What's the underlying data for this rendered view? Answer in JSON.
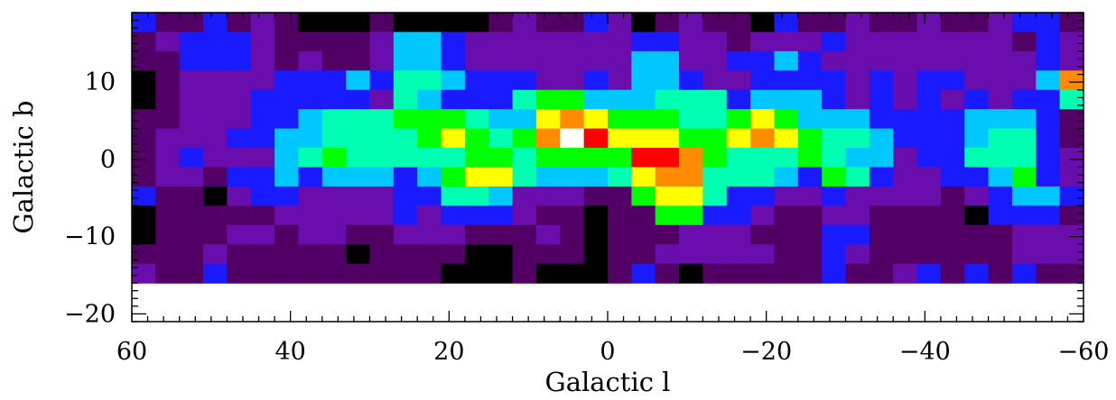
{
  "chart_data": {
    "type": "heatmap",
    "title": "",
    "xlabel": "Galactic l",
    "ylabel": "Galactic b",
    "xlim": [
      60,
      -60
    ],
    "ylim": [
      -21,
      19
    ],
    "x_ticks": [
      60,
      40,
      20,
      0,
      -20,
      -40,
      -60
    ],
    "x_tick_labels": [
      "60",
      "40",
      "20",
      "0",
      "−20",
      "−40",
      "−60"
    ],
    "y_ticks": [
      -20,
      -10,
      0,
      10
    ],
    "y_tick_labels": [
      "−20",
      "−10",
      "0",
      "10"
    ],
    "grid": false,
    "colormap": "rainbow",
    "color_scale": [
      "#000000",
      "#520066",
      "#6a0dad",
      "#1a1aff",
      "#00c8ff",
      "#00ffb0",
      "#00ff00",
      "#ffff00",
      "#ff8c00",
      "#ff0000",
      "#ffffff"
    ],
    "l_start": 60,
    "l_step": -3,
    "b_start": 19,
    "b_step": -2.5,
    "values": [
      [
        3,
        1,
        1,
        3,
        1,
        2,
        1,
        0,
        0,
        0,
        1,
        0,
        0,
        0,
        0,
        1,
        2,
        1,
        1,
        3,
        2,
        0,
        1,
        2,
        1,
        1,
        0,
        3,
        1,
        1,
        2,
        1,
        1,
        2,
        1,
        1,
        2,
        3,
        3,
        1
      ],
      [
        1,
        2,
        3,
        3,
        3,
        2,
        1,
        1,
        1,
        1,
        2,
        4,
        4,
        3,
        2,
        2,
        2,
        2,
        2,
        2,
        2,
        3,
        3,
        2,
        2,
        1,
        2,
        2,
        2,
        3,
        2,
        2,
        2,
        2,
        2,
        2,
        2,
        1,
        3,
        2
      ],
      [
        1,
        1,
        3,
        3,
        3,
        2,
        1,
        2,
        1,
        1,
        2,
        4,
        4,
        3,
        2,
        2,
        2,
        2,
        2,
        2,
        2,
        4,
        4,
        2,
        2,
        3,
        3,
        4,
        3,
        2,
        2,
        2,
        2,
        2,
        2,
        2,
        2,
        2,
        3,
        2
      ],
      [
        0,
        1,
        2,
        2,
        2,
        2,
        3,
        3,
        3,
        4,
        3,
        5,
        5,
        4,
        3,
        3,
        3,
        2,
        2,
        3,
        2,
        4,
        4,
        3,
        2,
        2,
        3,
        3,
        3,
        3,
        2,
        3,
        2,
        3,
        3,
        2,
        2,
        2,
        4,
        8
      ],
      [
        0,
        1,
        2,
        2,
        2,
        3,
        3,
        3,
        3,
        3,
        2,
        5,
        4,
        3,
        3,
        3,
        5,
        6,
        6,
        4,
        4,
        4,
        5,
        5,
        5,
        3,
        4,
        4,
        4,
        3,
        2,
        3,
        2,
        3,
        2,
        3,
        2,
        3,
        3,
        5
      ],
      [
        1,
        1,
        2,
        2,
        2,
        3,
        3,
        4,
        5,
        5,
        5,
        6,
        6,
        6,
        5,
        4,
        4,
        7,
        8,
        7,
        6,
        6,
        6,
        5,
        5,
        6,
        7,
        6,
        4,
        4,
        4,
        3,
        3,
        3,
        3,
        4,
        4,
        4,
        3,
        1
      ],
      [
        1,
        2,
        2,
        2,
        3,
        3,
        4,
        4,
        5,
        5,
        5,
        5,
        6,
        7,
        6,
        5,
        6,
        8,
        10,
        9,
        7,
        7,
        7,
        6,
        6,
        7,
        8,
        7,
        6,
        5,
        5,
        4,
        3,
        3,
        3,
        4,
        5,
        5,
        3,
        1
      ],
      [
        1,
        2,
        3,
        2,
        2,
        2,
        4,
        5,
        6,
        5,
        5,
        5,
        5,
        5,
        6,
        6,
        5,
        6,
        6,
        6,
        6,
        9,
        9,
        8,
        6,
        5,
        5,
        5,
        6,
        5,
        4,
        4,
        2,
        3,
        3,
        5,
        5,
        5,
        3,
        2
      ],
      [
        1,
        2,
        2,
        1,
        3,
        3,
        4,
        3,
        4,
        4,
        4,
        3,
        4,
        6,
        7,
        7,
        5,
        4,
        4,
        4,
        5,
        7,
        8,
        8,
        5,
        5,
        5,
        4,
        3,
        6,
        5,
        3,
        2,
        2,
        3,
        3,
        4,
        6,
        3,
        2
      ],
      [
        3,
        1,
        1,
        0,
        2,
        3,
        3,
        2,
        2,
        2,
        2,
        3,
        3,
        5,
        5,
        4,
        2,
        2,
        2,
        1,
        1,
        6,
        7,
        7,
        5,
        3,
        3,
        2,
        2,
        3,
        2,
        2,
        2,
        2,
        1,
        2,
        3,
        4,
        4,
        3
      ],
      [
        0,
        1,
        1,
        1,
        1,
        1,
        2,
        2,
        2,
        2,
        2,
        3,
        2,
        3,
        3,
        3,
        2,
        1,
        1,
        0,
        1,
        1,
        6,
        6,
        3,
        3,
        2,
        1,
        1,
        2,
        2,
        1,
        1,
        1,
        1,
        0,
        3,
        3,
        3,
        1
      ],
      [
        0,
        1,
        1,
        1,
        2,
        2,
        1,
        2,
        2,
        1,
        1,
        2,
        2,
        2,
        1,
        1,
        1,
        2,
        1,
        0,
        1,
        1,
        1,
        2,
        2,
        2,
        1,
        1,
        1,
        3,
        3,
        1,
        1,
        1,
        1,
        1,
        1,
        2,
        2,
        2
      ],
      [
        1,
        1,
        1,
        2,
        1,
        1,
        1,
        1,
        1,
        0,
        1,
        1,
        1,
        1,
        0,
        0,
        1,
        1,
        1,
        0,
        1,
        1,
        2,
        2,
        2,
        2,
        2,
        1,
        1,
        3,
        2,
        1,
        1,
        1,
        1,
        1,
        1,
        2,
        2,
        2
      ],
      [
        2,
        1,
        1,
        3,
        1,
        1,
        1,
        1,
        1,
        1,
        1,
        1,
        1,
        0,
        0,
        0,
        1,
        0,
        0,
        0,
        1,
        3,
        1,
        0,
        1,
        1,
        1,
        1,
        1,
        3,
        1,
        1,
        2,
        3,
        1,
        3,
        1,
        3,
        1,
        1
      ]
    ]
  }
}
